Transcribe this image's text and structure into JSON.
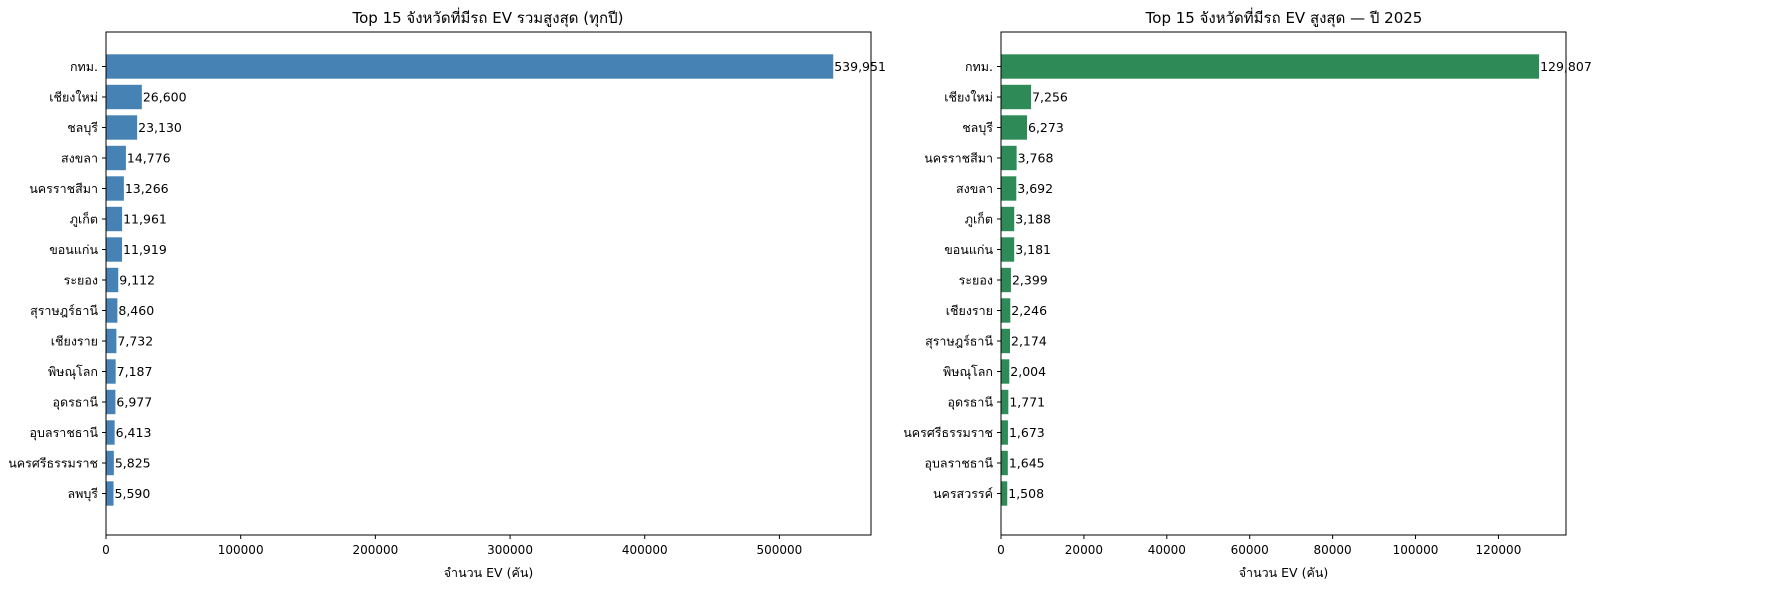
{
  "chart_data": [
    {
      "type": "bar",
      "orientation": "horizontal",
      "title": "Top 15 จังหวัดที่มีรถ EV รวมสูงสุด (ทุกปี)",
      "xlabel": "จำนวน EV (คัน)",
      "ylabel": "",
      "xlim": [
        0,
        568000
      ],
      "xticks": [
        0,
        100000,
        200000,
        300000,
        400000,
        500000
      ],
      "xtick_labels": [
        "0",
        "100000",
        "200000",
        "300000",
        "400000",
        "500000"
      ],
      "grid": false,
      "color": "#4682b4",
      "categories": [
        "กทม.",
        "เชียงใหม่",
        "ชลบุรี",
        "สงขลา",
        "นครราชสีมา",
        "ภูเก็ต",
        "ขอนแก่น",
        "ระยอง",
        "สุราษฎร์ธานี",
        "เชียงราย",
        "พิษณุโลก",
        "อุดรธานี",
        "อุบลราชธานี",
        "นครศรีธรรมราช",
        "ลพบุรี"
      ],
      "values": [
        539951,
        26600,
        23130,
        14776,
        13266,
        11961,
        11919,
        9112,
        8460,
        7732,
        7187,
        6977,
        6413,
        5825,
        5590
      ],
      "value_labels": [
        "539,951",
        "26,600",
        "23,130",
        "14,776",
        "13,266",
        "11,961",
        "11,919",
        "9,112",
        "8,460",
        "7,732",
        "7,187",
        "6,977",
        "6,413",
        "5,825",
        "5,590"
      ]
    },
    {
      "type": "bar",
      "orientation": "horizontal",
      "title": "Top 15 จังหวัดที่มีรถ EV สูงสุด — ปี 2025",
      "xlabel": "จำนวน EV (คัน)",
      "ylabel": "",
      "xlim": [
        0,
        136300
      ],
      "xticks": [
        0,
        20000,
        40000,
        60000,
        80000,
        100000,
        120000
      ],
      "xtick_labels": [
        "0",
        "20000",
        "40000",
        "60000",
        "80000",
        "100000",
        "120000"
      ],
      "grid": false,
      "color": "#2e8b57",
      "categories": [
        "กทม.",
        "เชียงใหม่",
        "ชลบุรี",
        "นครราชสีมา",
        "สงขลา",
        "ภูเก็ต",
        "ขอนแก่น",
        "ระยอง",
        "เชียงราย",
        "สุราษฎร์ธานี",
        "พิษณุโลก",
        "อุดรธานี",
        "นครศรีธรรมราช",
        "อุบลราชธานี",
        "นครสวรรค์"
      ],
      "values": [
        129807,
        7256,
        6273,
        3768,
        3692,
        3188,
        3181,
        2399,
        2246,
        2174,
        2004,
        1771,
        1673,
        1645,
        1508
      ],
      "value_labels": [
        "129,807",
        "7,256",
        "6,273",
        "3,768",
        "3,692",
        "3,188",
        "3,181",
        "2,399",
        "2,246",
        "2,174",
        "2,004",
        "1,771",
        "1,673",
        "1,645",
        "1,508"
      ]
    }
  ]
}
